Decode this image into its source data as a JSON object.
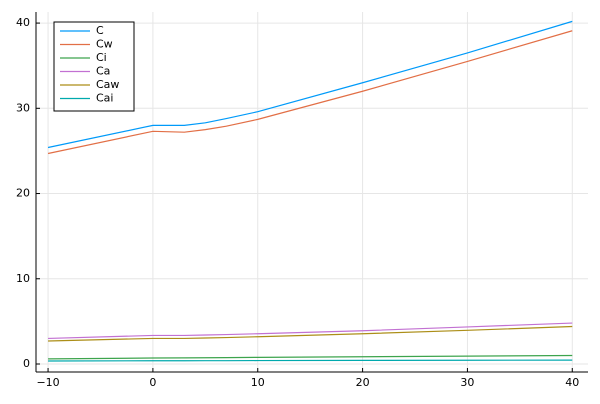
{
  "chart_data": {
    "type": "line",
    "x": [
      -10,
      0,
      3,
      5,
      7,
      10,
      20,
      30,
      40
    ],
    "series": [
      {
        "name": "C",
        "color": "#009af9",
        "values": [
          25.4,
          28.0,
          28.0,
          28.3,
          28.8,
          29.6,
          33.0,
          36.5,
          40.2
        ]
      },
      {
        "name": "Cw",
        "color": "#e26f46",
        "values": [
          24.7,
          27.3,
          27.2,
          27.5,
          27.9,
          28.7,
          32.0,
          35.5,
          39.1
        ]
      },
      {
        "name": "Ci",
        "color": "#3da44d",
        "values": [
          0.6,
          0.7,
          0.72,
          0.73,
          0.75,
          0.78,
          0.85,
          0.92,
          1.0
        ]
      },
      {
        "name": "Ca",
        "color": "#c271d2",
        "values": [
          3.0,
          3.35,
          3.35,
          3.4,
          3.45,
          3.55,
          3.9,
          4.35,
          4.8
        ]
      },
      {
        "name": "Caw",
        "color": "#ac8e18",
        "values": [
          2.7,
          3.0,
          3.0,
          3.05,
          3.1,
          3.2,
          3.55,
          3.95,
          4.4
        ]
      },
      {
        "name": "Cai",
        "color": "#00a9ad",
        "values": [
          0.35,
          0.38,
          0.38,
          0.39,
          0.39,
          0.4,
          0.42,
          0.44,
          0.45
        ]
      }
    ],
    "xlim": [
      -11.15,
      41.5
    ],
    "xticks": [
      {
        "value": -10,
        "label": "−10"
      },
      0,
      10,
      20,
      30,
      40
    ],
    "ylim": [
      -0.94,
      41.3
    ],
    "yticks": [
      0,
      10,
      20,
      30,
      40
    ],
    "grid": true,
    "legend": "top-left"
  }
}
